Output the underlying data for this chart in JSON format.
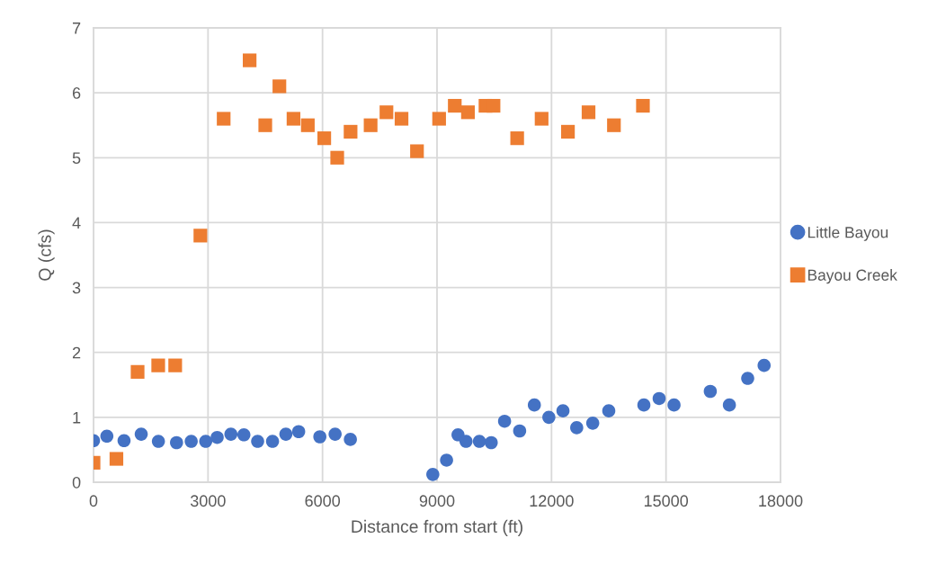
{
  "chart_data": {
    "type": "scatter",
    "xlabel": "Distance from start (ft)",
    "ylabel": "Q (cfs)",
    "xlim": [
      0,
      18000
    ],
    "ylim": [
      0,
      7
    ],
    "xticks": [
      0,
      3000,
      6000,
      9000,
      12000,
      15000,
      18000
    ],
    "yticks": [
      0,
      1,
      2,
      3,
      4,
      5,
      6,
      7
    ],
    "grid": true,
    "legend": "right",
    "series": [
      {
        "name": "Little Bayou",
        "color": "#4472c4",
        "marker": "circle",
        "x": [
          0,
          350,
          800,
          1250,
          1700,
          2175,
          2560,
          2940,
          3240,
          3600,
          3940,
          4300,
          4690,
          5040,
          5375,
          5930,
          6330,
          6730,
          8890,
          9250,
          9550,
          9760,
          10110,
          10420,
          10770,
          11165,
          11550,
          11930,
          12300,
          12660,
          13080,
          13500,
          14420,
          14820,
          15210,
          16160,
          16660,
          17140,
          17570
        ],
        "values": [
          0.64,
          0.71,
          0.64,
          0.74,
          0.63,
          0.61,
          0.63,
          0.63,
          0.69,
          0.74,
          0.73,
          0.63,
          0.63,
          0.74,
          0.78,
          0.7,
          0.74,
          0.66,
          0.12,
          0.34,
          0.73,
          0.63,
          0.63,
          0.61,
          0.94,
          0.79,
          1.19,
          1.0,
          1.1,
          0.84,
          0.91,
          1.1,
          1.19,
          1.29,
          1.19,
          1.4,
          1.19,
          1.6,
          1.8
        ]
      },
      {
        "name": "Bayou Creek",
        "color": "#ed7d31",
        "marker": "square",
        "x": [
          0,
          600,
          1155,
          1695,
          2140,
          2800,
          3410,
          4090,
          4500,
          4870,
          5240,
          5615,
          6045,
          6385,
          6735,
          7260,
          7675,
          8070,
          8475,
          9055,
          9465,
          9810,
          10270,
          10480,
          11100,
          11740,
          12430,
          12970,
          13635,
          14395
        ],
        "values": [
          0.3,
          0.36,
          1.7,
          1.8,
          1.8,
          3.8,
          5.6,
          6.5,
          5.5,
          6.1,
          5.6,
          5.5,
          5.3,
          5.0,
          5.4,
          5.5,
          5.7,
          5.6,
          5.1,
          5.6,
          5.8,
          5.7,
          5.8,
          5.8,
          5.3,
          5.6,
          5.4,
          5.7,
          5.5,
          5.8
        ]
      }
    ]
  }
}
